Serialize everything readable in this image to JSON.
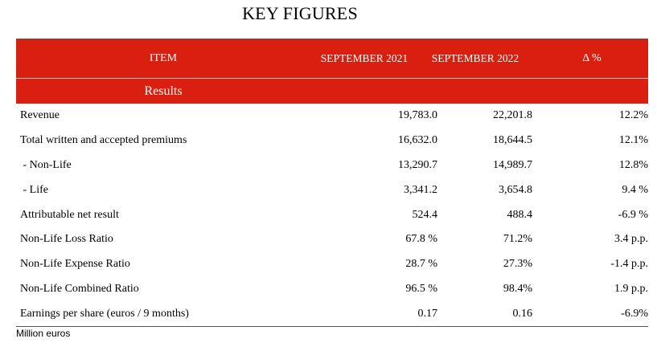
{
  "title": "KEY FIGURES",
  "header": {
    "item": "ITEM",
    "sep2021": "SEPTEMBER 2021",
    "sep2022": "SEPTEMBER 2022",
    "delta": "Δ %"
  },
  "section": "Results",
  "rows": [
    {
      "label": "Revenue",
      "sep2021": "19,783.0",
      "sep2022": "22,201.8",
      "delta": "12.2%"
    },
    {
      "label": "Total written and accepted premiums",
      "sep2021": "16,632.0",
      "sep2022": "18,644.5",
      "delta": "12.1%"
    },
    {
      "label": " - Non-Life",
      "sep2021": "13,290.7",
      "sep2022": "14,989.7",
      "delta": "12.8%"
    },
    {
      "label": " - Life",
      "sep2021": "3,341.2",
      "sep2022": "3,654.8",
      "delta": "9.4 %"
    },
    {
      "label": "Attributable net result",
      "sep2021": "524.4",
      "sep2022": "488.4",
      "delta": "-6.9 %"
    },
    {
      "label": "Non-Life Loss Ratio",
      "sep2021": "67.8 %",
      "sep2022": "71.2%",
      "delta": "3.4 p.p."
    },
    {
      "label": "Non-Life Expense Ratio",
      "sep2021": "28.7 %",
      "sep2022": "27.3%",
      "delta": "-1.4 p.p."
    },
    {
      "label": "Non-Life Combined Ratio",
      "sep2021": "96.5 %",
      "sep2022": "98.4%",
      "delta": "1.9 p.p."
    },
    {
      "label": "Earnings per share (euros / 9 months)",
      "sep2021": "0.17",
      "sep2022": "0.16",
      "delta": "-6.9%"
    }
  ],
  "footnote": "Million euros",
  "colors": {
    "header_bg": "#d92010",
    "header_text": "#ffffff"
  }
}
